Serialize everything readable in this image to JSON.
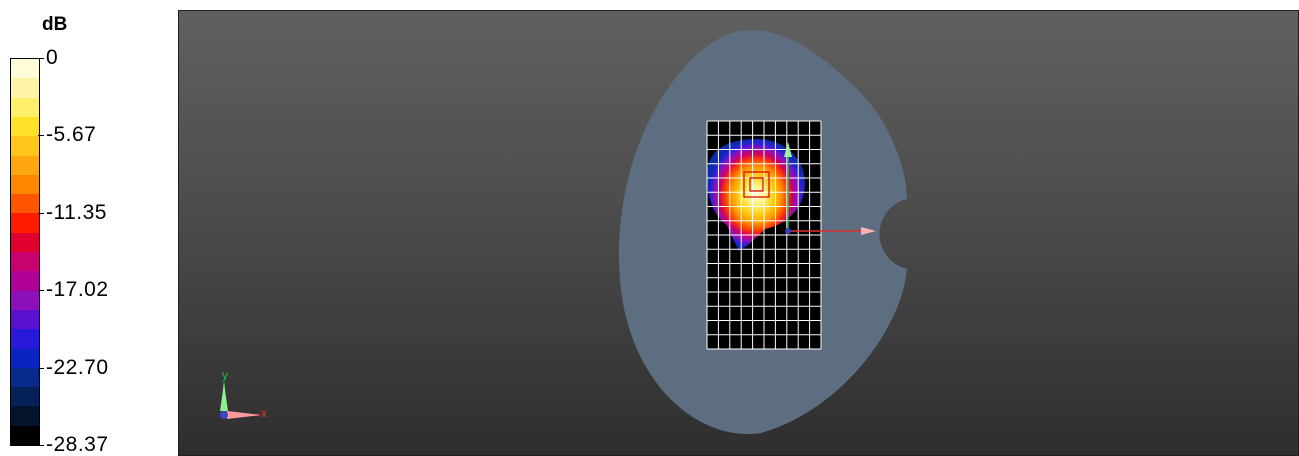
{
  "legend": {
    "unit": "dB",
    "ticks": [
      {
        "label": "0",
        "value": 0
      },
      {
        "label": "-5.67",
        "value": -5.67
      },
      {
        "label": "-11.35",
        "value": -11.35
      },
      {
        "label": "-17.02",
        "value": -17.02
      },
      {
        "label": "-22.70",
        "value": -22.7
      },
      {
        "label": "-28.37",
        "value": -28.37
      }
    ],
    "range": [
      -28.37,
      0
    ],
    "colors": [
      "#fffcd8",
      "#fff5a8",
      "#ffef6a",
      "#ffe12a",
      "#ffc51a",
      "#ffa610",
      "#ff8600",
      "#ff5400",
      "#ff1c00",
      "#e00030",
      "#c80070",
      "#ae0096",
      "#8c10b8",
      "#5a10cc",
      "#2818d8",
      "#0a24c0",
      "#082a8a",
      "#062058",
      "#04142c",
      "#000000"
    ]
  },
  "axes_triad": {
    "x_label": "x",
    "y_label": "y",
    "x_color": "#e03030",
    "y_color": "#22c040"
  },
  "scene": {
    "background_top": "#606060",
    "background_bottom": "#2e2e2e",
    "phantom_color": "#5d6e80",
    "grid_color": "#ffffff",
    "grid_columns": 10,
    "grid_rows": 16
  }
}
